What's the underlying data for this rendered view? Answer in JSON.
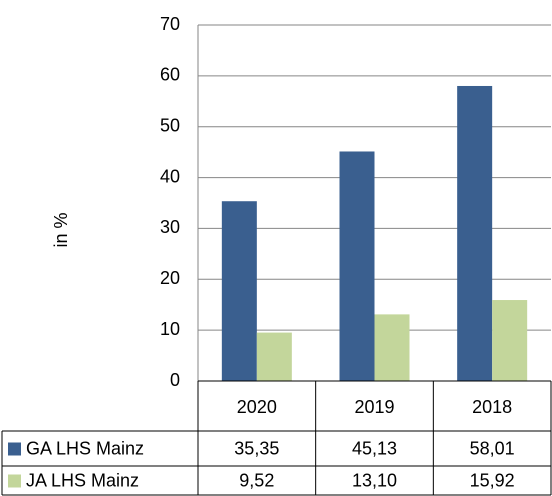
{
  "chart_data": {
    "type": "bar",
    "y_label": "in %",
    "categories": [
      "2020",
      "2019",
      "2018"
    ],
    "series": [
      {
        "name": "GA LHS Mainz",
        "color": "#3a5f8f",
        "values": [
          35.35,
          45.13,
          58.01
        ],
        "value_labels": [
          "35,35",
          "45,13",
          "58,01"
        ]
      },
      {
        "name": "JA LHS Mainz",
        "color": "#c3d69b",
        "values": [
          9.52,
          13.1,
          15.92
        ],
        "value_labels": [
          "9,52",
          "13,10",
          "15,92"
        ]
      }
    ],
    "ylim": [
      0,
      70
    ],
    "yticks": [
      0,
      10,
      20,
      30,
      40,
      50,
      60,
      70
    ],
    "grid": true
  }
}
